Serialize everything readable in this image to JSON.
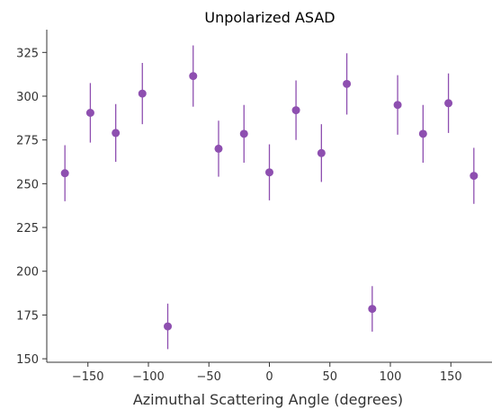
{
  "chart_data": {
    "type": "scatter",
    "title": "Unpolarized ASAD",
    "xlabel": "Azimuthal Scattering Angle (degrees)",
    "ylabel": "",
    "xlim": [
      -184,
      184
    ],
    "ylim": [
      148,
      338
    ],
    "xticks": [
      -150,
      -100,
      -50,
      0,
      50,
      100,
      150
    ],
    "xtick_labels": [
      "−150",
      "−100",
      "−50",
      "0",
      "50",
      "100",
      "150"
    ],
    "yticks": [
      150,
      175,
      200,
      225,
      250,
      275,
      300,
      325
    ],
    "ytick_labels": [
      "150",
      "175",
      "200",
      "225",
      "250",
      "275",
      "300",
      "325"
    ],
    "grid": false,
    "legend": "none",
    "color": "#8e4fb0",
    "points": [
      {
        "x": -169,
        "y": 256,
        "yerr": 16
      },
      {
        "x": -148,
        "y": 290.5,
        "yerr": 17
      },
      {
        "x": -127,
        "y": 279,
        "yerr": 16.5
      },
      {
        "x": -105,
        "y": 301.5,
        "yerr": 17.5
      },
      {
        "x": -84,
        "y": 168.5,
        "yerr": 13
      },
      {
        "x": -63,
        "y": 311.5,
        "yerr": 17.5
      },
      {
        "x": -42,
        "y": 270,
        "yerr": 16
      },
      {
        "x": -21,
        "y": 278.5,
        "yerr": 16.5
      },
      {
        "x": 0,
        "y": 256.5,
        "yerr": 16
      },
      {
        "x": 22,
        "y": 292,
        "yerr": 17
      },
      {
        "x": 43,
        "y": 267.5,
        "yerr": 16.5
      },
      {
        "x": 64,
        "y": 307,
        "yerr": 17.5
      },
      {
        "x": 85,
        "y": 178.5,
        "yerr": 13
      },
      {
        "x": 106,
        "y": 295,
        "yerr": 17
      },
      {
        "x": 127,
        "y": 278.5,
        "yerr": 16.5
      },
      {
        "x": 148,
        "y": 296,
        "yerr": 17
      },
      {
        "x": 169,
        "y": 254.5,
        "yerr": 16
      }
    ]
  }
}
